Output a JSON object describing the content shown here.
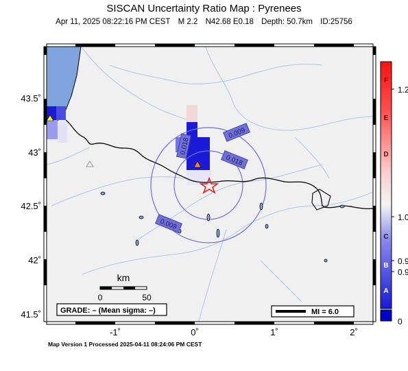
{
  "header": {
    "title": "SISCAN Uncertainty Ratio Map : Pyrenees",
    "date": "Apr 11, 2025 08:22:16 PM CEST",
    "magnitude": "M 2.2",
    "location": "N42.68 E0.18",
    "depth": "Depth: 50.7km",
    "event_id": "ID:25756"
  },
  "axes": {
    "lat_ticks": [
      "43.5˚",
      "43˚",
      "42.5˚",
      "42˚",
      "41.5˚"
    ],
    "lon_ticks": [
      "-1˚",
      "0˚",
      "1˚",
      "2˚"
    ]
  },
  "contour_labels": [
    "0.009",
    "0.018",
    "0.018",
    "0.009"
  ],
  "scale_bar": {
    "unit": "km",
    "start": "0",
    "end": "50"
  },
  "grade_box": "GRADE: – (Mean sigma: –)",
  "mi_legend": "MI = 6.0",
  "colorbar": {
    "letters": [
      "F",
      "E",
      "D",
      "C",
      "B",
      "A"
    ],
    "values": [
      "1.2",
      "1.0",
      "0.9",
      "0.9",
      "0"
    ]
  },
  "colors": {
    "sea": "#7ea3dd",
    "land": "#f0f0f0",
    "epicenter": "#e02020",
    "station": "#ff8800",
    "high_ratio": "#ff0000",
    "low_ratio": "#0000cc"
  },
  "footer": "Map Version 1 Processed 2025-04-11 08:24:06 PM CEST"
}
